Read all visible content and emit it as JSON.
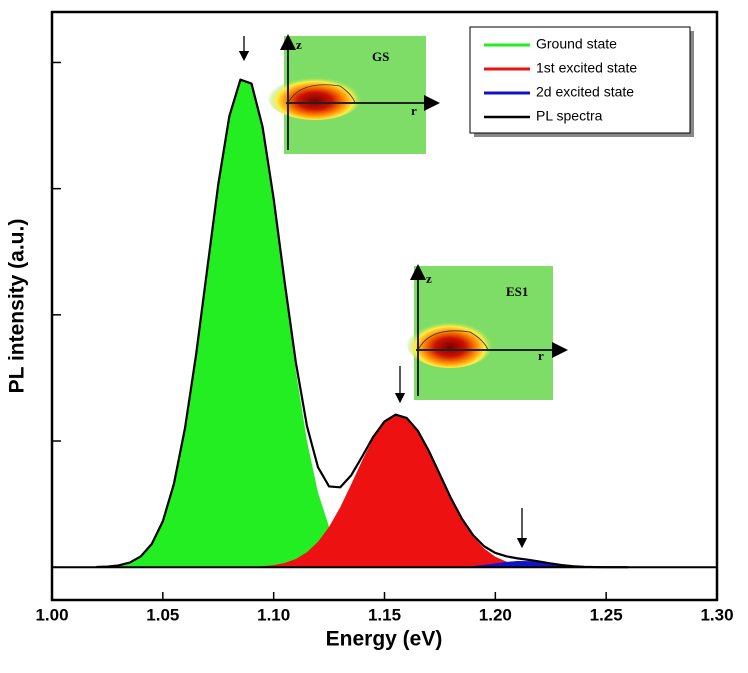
{
  "chart_data": {
    "type": "area",
    "x_label": "Energy (eV)",
    "y_label": "PL intensity (a.u.)",
    "x": [
      1.02,
      1.025,
      1.03,
      1.035,
      1.04,
      1.045,
      1.05,
      1.055,
      1.06,
      1.065,
      1.07,
      1.075,
      1.08,
      1.085,
      1.09,
      1.095,
      1.1,
      1.105,
      1.11,
      1.115,
      1.12,
      1.125,
      1.13,
      1.135,
      1.14,
      1.145,
      1.15,
      1.155,
      1.16,
      1.165,
      1.17,
      1.175,
      1.18,
      1.185,
      1.19,
      1.195,
      1.2,
      1.205,
      1.21,
      1.215,
      1.22,
      1.225,
      1.23,
      1.235,
      1.24,
      1.245,
      1.25,
      1.255,
      1.26
    ],
    "series": [
      {
        "name": "Ground state",
        "color": "#22ee22",
        "fill": true,
        "values": [
          0.002,
          0.005,
          0.014,
          0.036,
          0.085,
          0.184,
          0.364,
          0.661,
          1.102,
          1.684,
          2.359,
          3.033,
          3.574,
          3.863,
          3.83,
          3.482,
          2.904,
          2.221,
          1.558,
          1.002,
          0.591,
          0.32,
          0.159,
          0.072,
          0.03,
          0.012,
          0.004,
          0.001,
          0,
          0,
          0,
          0,
          0,
          0,
          0,
          0,
          0,
          0,
          0,
          0,
          0,
          0,
          0,
          0,
          0,
          0,
          0,
          0,
          0
        ]
      },
      {
        "name": "1st excited state",
        "color": "#ee1111",
        "fill": true,
        "values": [
          0,
          0,
          0,
          0,
          0,
          0,
          0,
          0,
          0,
          0,
          0,
          0,
          0,
          0.001,
          0.003,
          0.007,
          0.016,
          0.033,
          0.065,
          0.118,
          0.201,
          0.32,
          0.474,
          0.657,
          0.849,
          1.023,
          1.151,
          1.208,
          1.183,
          1.082,
          0.922,
          0.734,
          0.545,
          0.378,
          0.244,
          0.147,
          0.083,
          0.044,
          0.021,
          0.01,
          0.004,
          0.002,
          0.001,
          0,
          0,
          0,
          0,
          0,
          0
        ]
      },
      {
        "name": "2d excited state",
        "color": "#1111cc",
        "fill": true,
        "values": [
          0,
          0,
          0,
          0,
          0,
          0,
          0,
          0,
          0,
          0,
          0,
          0,
          0,
          0,
          0,
          0,
          0,
          0,
          0,
          0,
          0,
          0,
          0,
          0,
          0,
          0,
          0,
          0,
          0,
          0,
          0,
          0,
          0.001,
          0.004,
          0.009,
          0.018,
          0.03,
          0.042,
          0.049,
          0.048,
          0.04,
          0.028,
          0.016,
          0.008,
          0.003,
          0.001,
          0,
          0,
          0
        ]
      },
      {
        "name": "PL spectra",
        "color": "#000000",
        "fill": false,
        "values": [
          0.002,
          0.005,
          0.014,
          0.036,
          0.085,
          0.184,
          0.364,
          0.661,
          1.102,
          1.684,
          2.359,
          3.033,
          3.574,
          3.864,
          3.833,
          3.489,
          2.92,
          2.254,
          1.623,
          1.12,
          0.792,
          0.64,
          0.633,
          0.729,
          0.879,
          1.035,
          1.155,
          1.209,
          1.183,
          1.082,
          0.922,
          0.734,
          0.546,
          0.382,
          0.253,
          0.165,
          0.113,
          0.086,
          0.07,
          0.058,
          0.044,
          0.03,
          0.017,
          0.008,
          0.003,
          0.001,
          0,
          0,
          0
        ]
      }
    ],
    "xlim": [
      1.0,
      1.3
    ],
    "xticks": [
      {
        "value": 1,
        "label": "1.00"
      },
      1.05,
      {
        "value": 1.1,
        "label": "1.10"
      },
      1.15,
      {
        "value": 1.2,
        "label": "1.20"
      },
      1.25,
      {
        "value": 1.3,
        "label": "1.30"
      }
    ],
    "ylim": [
      -0.26,
      4.4
    ],
    "yticks": [
      0,
      1,
      2,
      3,
      4
    ],
    "legend": "upper right",
    "insets": [
      {
        "label": "GS",
        "z_label": "z",
        "r_label": "r"
      },
      {
        "label": "ES1",
        "z_label": "z",
        "r_label": "r"
      }
    ]
  }
}
